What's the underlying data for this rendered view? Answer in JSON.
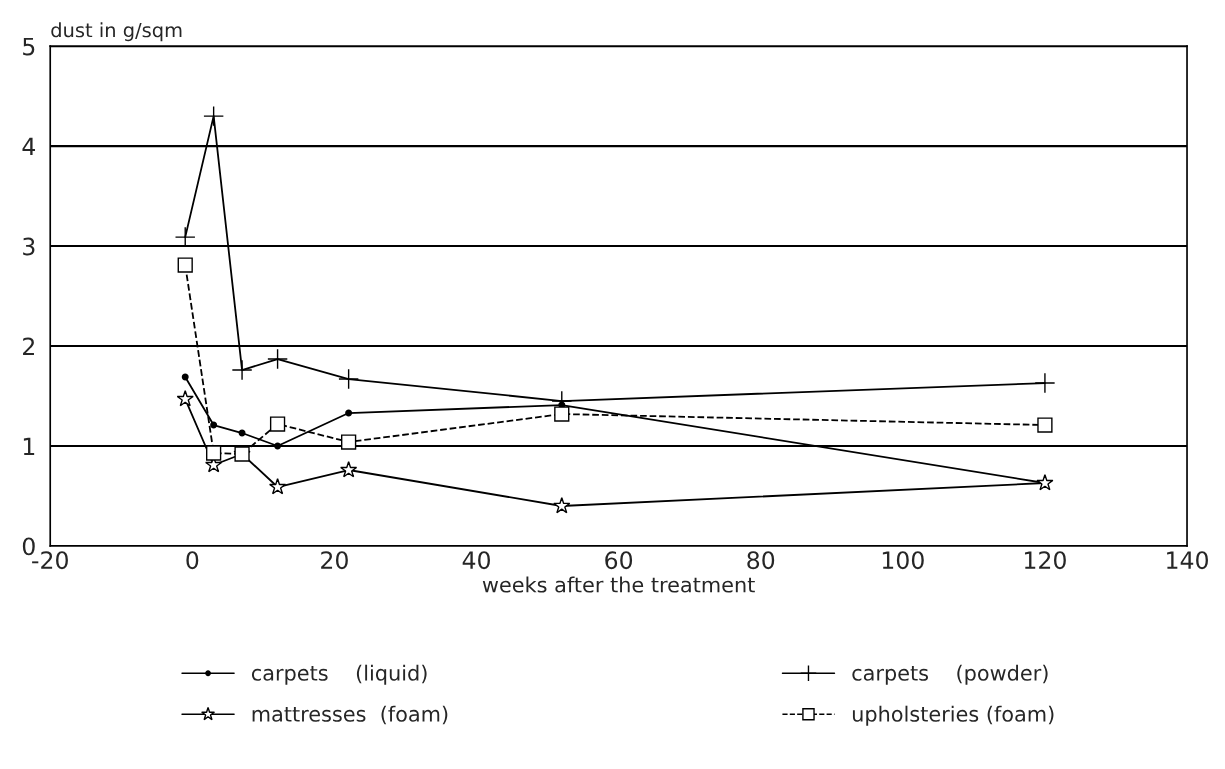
{
  "chart_data": {
    "type": "line",
    "xlabel": "weeks after the treatment",
    "ylabel": "dust in g/sqm",
    "x": [
      -1,
      3,
      7,
      12,
      22,
      52,
      120
    ],
    "series": [
      {
        "name": "carpets    (liquid)",
        "color": "#000000",
        "marker": "circle",
        "line_style": "solid",
        "values": [
          1.69,
          1.21,
          1.13,
          1.0,
          1.33,
          1.41,
          0.63
        ]
      },
      {
        "name": "carpets    (powder)",
        "color": "#000000",
        "marker": "cross",
        "line_style": "solid",
        "values": [
          3.09,
          4.3,
          1.76,
          1.87,
          1.67,
          1.45,
          1.63
        ]
      },
      {
        "name": "mattresses  (foam)",
        "color": "#000000",
        "marker": "star",
        "line_style": "solid",
        "values": [
          1.47,
          0.81,
          0.92,
          0.59,
          0.76,
          0.4,
          0.63
        ]
      },
      {
        "name": "upholsteries (foam)",
        "color": "#000000",
        "marker": "square",
        "line_style": "dashed",
        "values": [
          2.81,
          0.93,
          0.92,
          1.22,
          1.04,
          1.32,
          1.21
        ]
      }
    ],
    "xlim": [
      -20,
      140
    ],
    "xticks": [
      -20,
      0,
      20,
      40,
      60,
      80,
      100,
      120,
      140
    ],
    "ylim": [
      0,
      5
    ],
    "yticks": [
      0,
      1,
      2,
      3,
      4,
      5
    ],
    "grid": "y",
    "legend": "bottom"
  }
}
